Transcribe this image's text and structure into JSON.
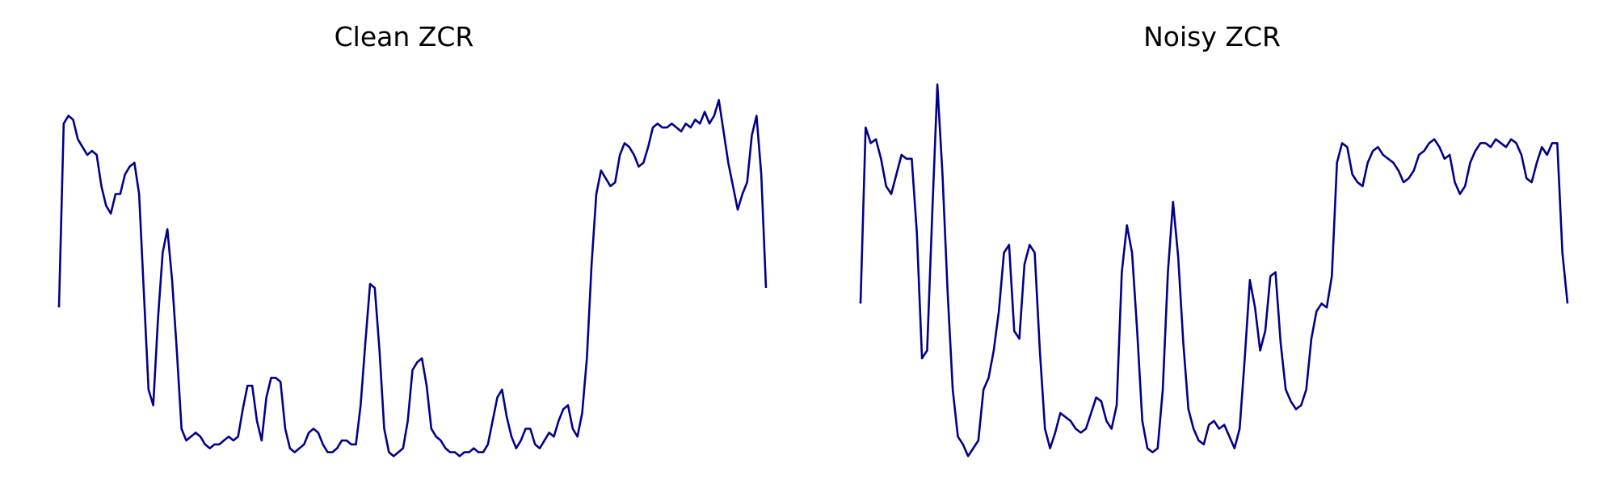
{
  "chart_data": [
    {
      "type": "line",
      "title": "Clean ZCR",
      "xlabel": "",
      "ylabel": "",
      "axes": "off",
      "grid": false,
      "color": "#00008b",
      "x_range": [
        0,
        135
      ],
      "ylim": [
        0,
        1
      ],
      "series": [
        {
          "values": [
            0.41,
            0.88,
            0.9,
            0.89,
            0.84,
            0.82,
            0.8,
            0.81,
            0.8,
            0.72,
            0.67,
            0.65,
            0.7,
            0.7,
            0.75,
            0.77,
            0.78,
            0.7,
            0.45,
            0.2,
            0.16,
            0.38,
            0.55,
            0.61,
            0.48,
            0.3,
            0.1,
            0.07,
            0.08,
            0.09,
            0.08,
            0.06,
            0.05,
            0.06,
            0.06,
            0.07,
            0.08,
            0.07,
            0.08,
            0.15,
            0.21,
            0.21,
            0.12,
            0.07,
            0.18,
            0.23,
            0.23,
            0.22,
            0.1,
            0.05,
            0.04,
            0.05,
            0.06,
            0.09,
            0.1,
            0.09,
            0.06,
            0.04,
            0.04,
            0.05,
            0.07,
            0.07,
            0.06,
            0.06,
            0.16,
            0.32,
            0.47,
            0.46,
            0.3,
            0.1,
            0.04,
            0.03,
            0.04,
            0.05,
            0.12,
            0.25,
            0.27,
            0.28,
            0.21,
            0.1,
            0.08,
            0.07,
            0.05,
            0.04,
            0.04,
            0.03,
            0.04,
            0.04,
            0.05,
            0.04,
            0.04,
            0.06,
            0.12,
            0.18,
            0.2,
            0.13,
            0.08,
            0.05,
            0.07,
            0.1,
            0.1,
            0.06,
            0.05,
            0.07,
            0.09,
            0.08,
            0.12,
            0.15,
            0.16,
            0.1,
            0.08,
            0.14,
            0.28,
            0.52,
            0.7,
            0.76,
            0.74,
            0.72,
            0.73,
            0.8,
            0.83,
            0.82,
            0.8,
            0.77,
            0.78,
            0.82,
            0.87,
            0.88,
            0.87,
            0.87,
            0.88,
            0.87,
            0.86,
            0.88,
            0.87,
            0.89,
            0.88,
            0.91,
            0.88,
            0.9,
            0.94,
            0.86,
            0.78,
            0.72,
            0.66,
            0.7,
            0.73,
            0.85,
            0.9,
            0.75,
            0.46
          ]
        }
      ]
    },
    {
      "type": "line",
      "title": "Noisy ZCR",
      "xlabel": "",
      "ylabel": "",
      "axes": "off",
      "grid": false,
      "color": "#00008b",
      "x_range": [
        0,
        135
      ],
      "ylim": [
        0,
        1
      ],
      "series": [
        {
          "values": [
            0.42,
            0.87,
            0.83,
            0.84,
            0.79,
            0.72,
            0.7,
            0.75,
            0.8,
            0.79,
            0.79,
            0.6,
            0.28,
            0.3,
            0.65,
            0.98,
            0.75,
            0.45,
            0.2,
            0.08,
            0.06,
            0.03,
            0.05,
            0.07,
            0.2,
            0.23,
            0.3,
            0.4,
            0.55,
            0.57,
            0.35,
            0.33,
            0.52,
            0.57,
            0.55,
            0.3,
            0.1,
            0.05,
            0.09,
            0.14,
            0.13,
            0.12,
            0.1,
            0.09,
            0.1,
            0.14,
            0.18,
            0.17,
            0.12,
            0.1,
            0.16,
            0.5,
            0.62,
            0.55,
            0.35,
            0.12,
            0.05,
            0.04,
            0.05,
            0.2,
            0.5,
            0.68,
            0.54,
            0.32,
            0.15,
            0.1,
            0.07,
            0.06,
            0.11,
            0.12,
            0.1,
            0.11,
            0.08,
            0.05,
            0.1,
            0.28,
            0.48,
            0.41,
            0.3,
            0.35,
            0.49,
            0.5,
            0.32,
            0.2,
            0.17,
            0.15,
            0.16,
            0.2,
            0.33,
            0.4,
            0.42,
            0.41,
            0.49,
            0.78,
            0.83,
            0.82,
            0.75,
            0.73,
            0.72,
            0.78,
            0.81,
            0.82,
            0.8,
            0.79,
            0.78,
            0.76,
            0.73,
            0.74,
            0.76,
            0.8,
            0.81,
            0.83,
            0.84,
            0.82,
            0.79,
            0.8,
            0.73,
            0.7,
            0.72,
            0.78,
            0.81,
            0.83,
            0.83,
            0.82,
            0.84,
            0.83,
            0.82,
            0.84,
            0.83,
            0.8,
            0.74,
            0.73,
            0.78,
            0.82,
            0.8,
            0.83,
            0.83,
            0.55,
            0.42
          ]
        }
      ]
    }
  ]
}
